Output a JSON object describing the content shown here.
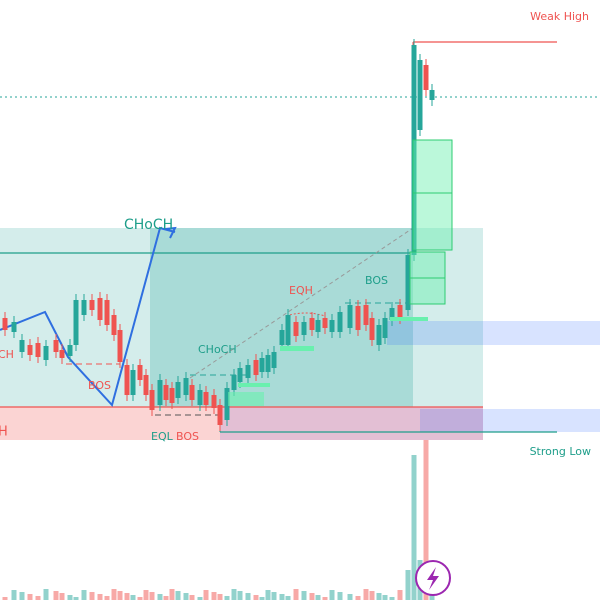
{
  "labels": {
    "weak_high": "Weak High",
    "strong_low": "Strong Low",
    "choch_major": "CHoCH",
    "choch_minor": "CHoCH",
    "eqh": "EQH",
    "bos_right": "BOS",
    "bos_left": "BOS",
    "eql": "EQL",
    "bos_bottom": "BOS",
    "cut_left_low": "H",
    "cut_left_mid": "CH"
  }
}
